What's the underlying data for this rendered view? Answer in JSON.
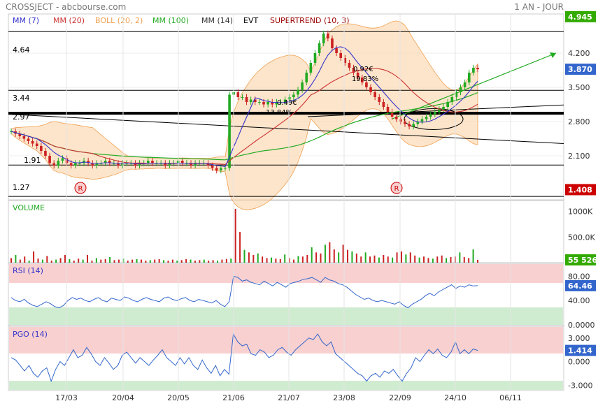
{
  "header": {
    "left": "CROSSJECT - abcbourse.com",
    "right": "1 AN - JOUR"
  },
  "legend": [
    {
      "label": "MM (7)",
      "color": "#3333cc"
    },
    {
      "label": "MM (20)",
      "color": "#cc3333"
    },
    {
      "label": "BOLL (20, 2)",
      "color": "#f0a050"
    },
    {
      "label": "MM (100)",
      "color": "#22aa22"
    },
    {
      "label": "MM (14)",
      "color": "#333333"
    },
    {
      "label": "EVT",
      "color": "#000000"
    },
    {
      "label": "SUPERTREND (10, 3)",
      "color": "#990000"
    }
  ],
  "panel_titles": {
    "volume": "VOLUME",
    "rsi": "RSI (14)",
    "pgo": "PGO (14)"
  },
  "annotations": {
    "level_464": "4.64",
    "level_344": "3.44",
    "level_297": "2.97",
    "level_191": "1.91",
    "level_127": "1.27",
    "measure1": "0.92€",
    "measure1_pct": "19.83%",
    "measure2": "0.49€",
    "measure2_pct": "13.84%",
    "rsi_marker": "R"
  },
  "chart_data": [
    {
      "type": "line",
      "title": "CROSSJECT",
      "subtitle": "1 AN - JOUR",
      "x_ticks": [
        "17/03",
        "20/04",
        "20/05",
        "21/06",
        "21/07",
        "23/08",
        "22/09",
        "24/10",
        "06/11"
      ],
      "ylim": [
        1.2,
        5.0
      ],
      "y_ticks": [
        "4.200",
        "3.500",
        "2.800",
        "2.100"
      ],
      "price_tags": [
        {
          "value": "4.945",
          "bg": "#33aa00"
        },
        {
          "value": "3.870",
          "bg": "#3366cc"
        },
        {
          "value": "1.408",
          "bg": "#cc0000"
        }
      ],
      "horizontal_levels": [
        4.64,
        3.44,
        2.97,
        1.91,
        1.27
      ],
      "close": [
        2.6,
        2.55,
        2.5,
        2.45,
        2.4,
        2.35,
        2.3,
        2.2,
        2.1,
        1.95,
        1.9,
        2.0,
        2.05,
        1.95,
        1.9,
        1.95,
        1.95,
        2.0,
        1.95,
        1.9,
        1.95,
        1.95,
        2.0,
        1.95,
        1.95,
        1.9,
        1.95,
        1.95,
        1.95,
        1.9,
        1.95,
        1.95,
        2.0,
        1.95,
        1.95,
        1.95,
        1.9,
        1.95,
        1.95,
        2.0,
        1.95,
        1.95,
        1.9,
        1.95,
        1.95,
        1.95,
        1.9,
        1.85,
        1.8,
        1.85,
        1.85,
        3.35,
        3.4,
        3.3,
        3.3,
        3.2,
        3.25,
        3.2,
        3.2,
        3.15,
        3.2,
        3.15,
        3.2,
        3.2,
        3.25,
        3.3,
        3.35,
        3.45,
        3.6,
        3.8,
        4.0,
        4.2,
        4.4,
        4.6,
        4.5,
        4.3,
        4.2,
        4.1,
        4.0,
        3.9,
        3.8,
        3.7,
        3.6,
        3.5,
        3.4,
        3.3,
        3.2,
        3.1,
        3.0,
        2.9,
        2.85,
        2.8,
        2.75,
        2.7,
        2.75,
        2.8,
        2.85,
        2.9,
        2.95,
        3.0,
        3.05,
        3.1,
        3.2,
        3.3,
        3.4,
        3.5,
        3.6,
        3.8,
        3.9,
        3.87
      ]
    },
    {
      "type": "bar",
      "title": "VOLUME",
      "y_ticks": [
        "1000K",
        "500.0K"
      ],
      "ylim": [
        0,
        1200000
      ],
      "last_value": "55 526",
      "last_value_bg": "#33aa00",
      "values": [
        90000,
        150000,
        60000,
        120000,
        40000,
        220000,
        80000,
        60000,
        130000,
        40000,
        60000,
        90000,
        150000,
        70000,
        40000,
        80000,
        60000,
        150000,
        40000,
        90000,
        60000,
        70000,
        110000,
        50000,
        60000,
        80000,
        40000,
        60000,
        70000,
        60000,
        40000,
        50000,
        60000,
        70000,
        50000,
        40000,
        60000,
        40000,
        50000,
        70000,
        60000,
        40000,
        50000,
        60000,
        40000,
        50000,
        40000,
        60000,
        70000,
        80000,
        1050000,
        600000,
        250000,
        200000,
        150000,
        180000,
        120000,
        90000,
        100000,
        80000,
        70000,
        160000,
        90000,
        60000,
        130000,
        120000,
        150000,
        300000,
        200000,
        180000,
        350000,
        400000,
        260000,
        200000,
        350000,
        250000,
        220000,
        180000,
        120000,
        200000,
        120000,
        140000,
        100000,
        150000,
        120000,
        100000,
        200000,
        220000,
        160000,
        200000,
        140000,
        100000,
        120000,
        90000,
        80000,
        120000,
        140000,
        90000,
        110000,
        120000,
        200000,
        110000,
        90000,
        260000,
        55526
      ]
    },
    {
      "type": "line",
      "title": "RSI (14)",
      "y_ticks": [
        "80.00",
        "40.00",
        "0.0000"
      ],
      "ylim": [
        0,
        100
      ],
      "zones": {
        "overbought": 70,
        "oversold": 30
      },
      "last_value": "64.46",
      "last_value_bg": "#3366cc",
      "values": [
        45,
        40,
        38,
        42,
        36,
        32,
        30,
        34,
        38,
        35,
        30,
        28,
        32,
        40,
        45,
        42,
        44,
        40,
        38,
        42,
        45,
        40,
        38,
        44,
        42,
        40,
        46,
        44,
        40,
        38,
        42,
        45,
        42,
        40,
        38,
        44,
        46,
        42,
        40,
        43,
        45,
        40,
        38,
        42,
        40,
        38,
        36,
        40,
        34,
        30,
        38,
        80,
        78,
        72,
        74,
        70,
        68,
        66,
        72,
        68,
        64,
        70,
        66,
        62,
        68,
        70,
        72,
        75,
        76,
        78,
        74,
        70,
        78,
        74,
        72,
        68,
        66,
        62,
        56,
        50,
        46,
        42,
        44,
        40,
        38,
        40,
        38,
        36,
        34,
        38,
        32,
        28,
        34,
        38,
        42,
        48,
        52,
        48,
        54,
        58,
        62,
        66,
        60,
        64,
        62,
        66,
        64,
        64.46
      ]
    },
    {
      "type": "line",
      "title": "PGO (14)",
      "y_ticks": [
        "3.000",
        "0.000",
        "-3.000"
      ],
      "ylim": [
        -3.6,
        4.4
      ],
      "zones": {
        "upper": 2.4,
        "lower": -2.4
      },
      "last_value": "1.414",
      "last_value_bg": "#3366cc",
      "values": [
        0.5,
        0.2,
        -0.5,
        -1.2,
        -0.5,
        -1.5,
        -2.0,
        -1.2,
        -0.8,
        -2.5,
        -1.0,
        0.0,
        -0.5,
        0.5,
        1.5,
        0.5,
        0.8,
        1.8,
        1.0,
        0.0,
        -0.5,
        0.5,
        -0.2,
        -1.0,
        -0.5,
        0.8,
        1.2,
        0.5,
        -0.2,
        0.5,
        0.0,
        -0.5,
        0.2,
        0.8,
        1.5,
        0.5,
        0.0,
        -0.5,
        0.5,
        -0.3,
        0.5,
        -0.5,
        -1.0,
        0.2,
        -0.8,
        -1.5,
        -0.5,
        -1.8,
        -1.0,
        -1.6,
        3.5,
        2.5,
        2.0,
        2.2,
        1.0,
        0.8,
        1.5,
        1.2,
        0.5,
        0.8,
        1.5,
        1.8,
        1.2,
        0.8,
        1.5,
        2.0,
        2.5,
        3.0,
        2.8,
        3.5,
        2.5,
        2.0,
        2.5,
        1.0,
        0.5,
        0.0,
        -0.5,
        -1.0,
        -1.5,
        -1.8,
        -2.5,
        -1.8,
        -1.5,
        -2.0,
        -1.2,
        -1.5,
        -1.0,
        -1.8,
        -2.5,
        -1.5,
        -0.8,
        0.5,
        0.0,
        0.8,
        1.5,
        1.0,
        1.6,
        0.8,
        0.5,
        1.2,
        2.5,
        1.0,
        1.5,
        1.0,
        1.6,
        1.414
      ]
    }
  ]
}
